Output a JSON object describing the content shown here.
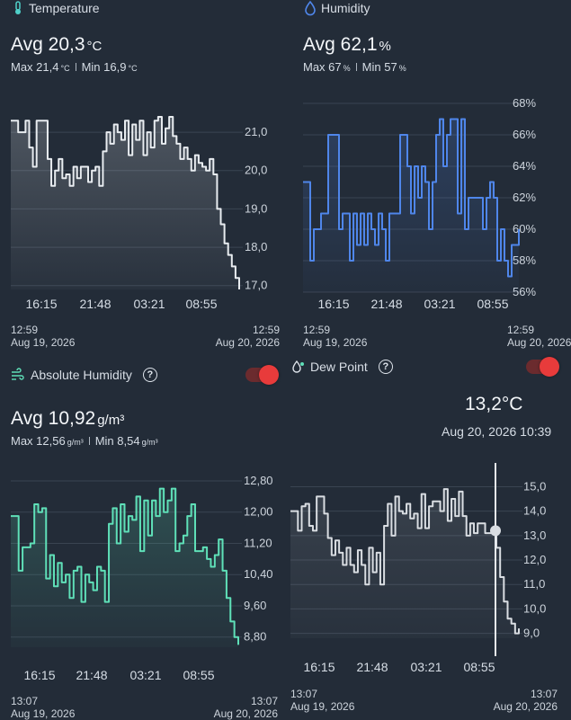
{
  "temperature": {
    "title": "Temperature",
    "icon": "thermometer-icon",
    "avg_label": "Avg 20,3",
    "avg_unit": "°C",
    "max_value": "Max 21,4",
    "max_unit": "°C",
    "min_value": "Min 16,9",
    "min_unit": "°C",
    "range_start_time": "12:59",
    "range_start_date": "Aug 19, 2026",
    "range_end_time": "12:59",
    "range_end_date": "Aug 20, 2026"
  },
  "humidity": {
    "title": "Humidity",
    "icon": "water-drop-icon",
    "avg_label": "Avg 62,1",
    "avg_unit": "%",
    "max_value": "Max 67",
    "max_unit": "%",
    "min_value": "Min 57",
    "min_unit": "%",
    "range_start_time": "12:59",
    "range_start_date": "Aug 19, 2026",
    "range_end_time": "12:59",
    "range_end_date": "Aug 20, 2026"
  },
  "absolute_humidity": {
    "title": "Absolute Humidity",
    "icon": "wind-drop-icon",
    "help": "?",
    "toggle_on": true,
    "avg_label": "Avg 10,92",
    "avg_unit": "g/m³",
    "max_value": "Max 12,56",
    "max_unit": "g/m³",
    "min_value": "Min 8,54",
    "min_unit": "g/m³",
    "range_start_time": "13:07",
    "range_start_date": "Aug 19, 2026",
    "range_end_time": "13:07",
    "range_end_date": "Aug 20, 2026"
  },
  "dew_point": {
    "title": "Dew Point",
    "icon": "dew-drops-icon",
    "help": "?",
    "toggle_on": true,
    "current_value": "13,2°C",
    "current_time": "Aug 20, 2026 10:39",
    "range_start_time": "13:07",
    "range_start_date": "Aug 19, 2026",
    "range_end_time": "13:07",
    "range_end_date": "Aug 20, 2026"
  },
  "colors": {
    "background": "#232c38",
    "temperature_line": "#e8ecf0",
    "humidity_line": "#4f86ea",
    "absolute_humidity_line": "#5fe0b8",
    "dew_point_line": "#d9dde2",
    "toggle": "#e83b3b"
  },
  "chart_data": [
    {
      "id": "temperature",
      "type": "area",
      "x_tick_labels": [
        "16:15",
        "21:48",
        "03:21",
        "08:55"
      ],
      "y_tick_labels": [
        "21,0",
        "20,0",
        "19,0",
        "18,0",
        "17,0"
      ],
      "y_ticks": [
        21,
        20,
        19,
        18,
        17
      ],
      "ylim": [
        16.9,
        21.4
      ],
      "values": [
        21.3,
        21.3,
        21.0,
        21.0,
        21.3,
        20.6,
        20.1,
        21.3,
        21.3,
        21.3,
        20.3,
        19.6,
        20.0,
        20.3,
        19.8,
        19.9,
        19.6,
        20.1,
        19.8,
        20.1,
        20.1,
        19.7,
        20.0,
        20.1,
        19.6,
        20.5,
        21.0,
        20.7,
        21.2,
        21.0,
        20.8,
        21.3,
        20.4,
        21.2,
        20.8,
        21.3,
        20.4,
        21.0,
        20.6,
        21.3,
        21.4,
        20.7,
        21.1,
        21.4,
        20.9,
        20.7,
        20.3,
        20.6,
        20.3,
        20.0,
        20.4,
        20.2,
        20.1,
        20.0,
        20.3,
        19.9,
        19.0,
        18.6,
        18.1,
        17.8,
        17.5,
        17.2,
        16.9
      ]
    },
    {
      "id": "humidity",
      "type": "area",
      "x_tick_labels": [
        "16:15",
        "21:48",
        "03:21",
        "08:55"
      ],
      "y_tick_labels": [
        "68%",
        "66%",
        "64%",
        "62%",
        "60%",
        "58%",
        "56%"
      ],
      "y_ticks": [
        68,
        66,
        64,
        62,
        60,
        58,
        56
      ],
      "ylim": [
        56,
        68
      ],
      "values": [
        63,
        63,
        58,
        60,
        60,
        61,
        61,
        66,
        66,
        66,
        60,
        61,
        61,
        58,
        61,
        59,
        61,
        59,
        61,
        60,
        59,
        61,
        60,
        58,
        61,
        61,
        61,
        66,
        66,
        64,
        61,
        64,
        62,
        64,
        63,
        60,
        63,
        66,
        67,
        64,
        66,
        67,
        67,
        61,
        67,
        60,
        62,
        62,
        62,
        62,
        60,
        62,
        63,
        62,
        58,
        60,
        58,
        57,
        59,
        59,
        60
      ]
    },
    {
      "id": "absolute_humidity",
      "type": "area",
      "x_tick_labels": [
        "16:15",
        "21:48",
        "03:21",
        "08:55"
      ],
      "y_tick_labels": [
        "12,80",
        "12,00",
        "11,20",
        "10,40",
        "9,60",
        "8,80"
      ],
      "y_ticks": [
        12.8,
        12.0,
        11.2,
        10.4,
        9.6,
        8.8
      ],
      "ylim": [
        8.54,
        12.8
      ],
      "values": [
        11.9,
        11.9,
        10.5,
        11.1,
        11.1,
        11.2,
        12.2,
        12.0,
        12.1,
        10.3,
        10.9,
        10.1,
        10.7,
        10.2,
        10.4,
        9.8,
        10.5,
        10.6,
        9.7,
        10.4,
        10.2,
        10.0,
        10.6,
        10.5,
        9.7,
        11.7,
        12.1,
        11.2,
        12.2,
        11.5,
        11.9,
        11.8,
        12.4,
        11.0,
        12.3,
        11.4,
        12.3,
        11.9,
        12.6,
        12.0,
        12.3,
        12.6,
        11.0,
        11.2,
        11.4,
        11.9,
        12.2,
        11.0,
        11.0,
        11.1,
        10.8,
        10.6,
        10.9,
        11.3,
        10.5,
        9.8,
        9.2,
        8.8,
        8.6
      ]
    },
    {
      "id": "dew_point",
      "type": "line",
      "x_tick_labels": [
        "16:15",
        "21:48",
        "03:21",
        "08:55"
      ],
      "y_tick_labels": [
        "15,0",
        "14,0",
        "13,0",
        "12,0",
        "11,0",
        "10,0",
        "9,0"
      ],
      "y_ticks": [
        15,
        14,
        13,
        12,
        11,
        10,
        9
      ],
      "ylim": [
        8.8,
        15.2
      ],
      "highlight_value": 13.2,
      "values": [
        14.0,
        14.0,
        13.2,
        14.2,
        14.3,
        13.4,
        13.2,
        14.6,
        14.6,
        13.9,
        12.9,
        12.2,
        12.8,
        12.3,
        11.8,
        12.5,
        11.8,
        11.5,
        12.4,
        11.8,
        11.0,
        12.5,
        11.5,
        12.3,
        11.0,
        13.4,
        14.3,
        13.0,
        14.6,
        14.0,
        13.9,
        14.3,
        13.7,
        13.9,
        13.3,
        14.7,
        13.3,
        14.2,
        14.4,
        14.4,
        14.0,
        14.9,
        13.6,
        14.5,
        13.8,
        14.8,
        13.8,
        13.0,
        13.5,
        13.1,
        13.5,
        13.5,
        13.1,
        13.1,
        13.2,
        12.5,
        11.3,
        10.3,
        9.6,
        9.4,
        9.0,
        9.2
      ]
    }
  ]
}
